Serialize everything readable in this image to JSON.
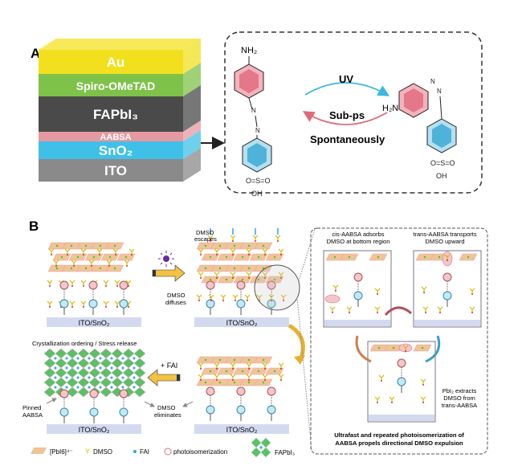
{
  "panel_a": {
    "label": "A",
    "layers": [
      "Au",
      "Spiro-OMeTAD",
      "FAPbI₃",
      "AABSA",
      "SnO₂",
      "ITO"
    ],
    "layer_colors": [
      "#f2e01e",
      "#7fc24a",
      "#4a4a4a",
      "#e49aa0",
      "#3fc0e8",
      "#8a8a8a"
    ],
    "cis_molecule": {
      "top_group": "NH₂",
      "bottom_group": "OH",
      "sulfonyl": "O=S=O"
    },
    "trans_molecule": {
      "left_group": "H₂N",
      "bottom_group": "OH",
      "sulfonyl": "O=S=O"
    },
    "forward_label": "UV",
    "reverse_label": "Sub-ps",
    "reverse_label_2": "Spontaneously"
  },
  "panel_b": {
    "label": "B",
    "substrate": "ITO/SnO₂",
    "dmso_escapes": "DMSO\nescapes",
    "dmso_escapes_1": "DMSO",
    "dmso_escapes_2": "escapes",
    "dmso_diffuses_1": "DMSO",
    "dmso_diffuses_2": "diffuses",
    "crystallization": "Crystallization ordering / Stress release",
    "add_fai": "+ FAI",
    "pinned_1": "Pinned",
    "pinned_2": "AABSA",
    "eliminates_1": "DMSO",
    "eliminates_2": "eliminates",
    "legend": {
      "pbi6": "[PbI6]⁴⁻",
      "dmso": "DMSO",
      "fai": "FAI",
      "photo": "photoisomerization",
      "fapbi3": "FAPbI₃"
    },
    "mechanism": {
      "step1_1": "cis-AABSA adsorbs",
      "step1_2": "DMSO  at bottom region",
      "step2_1": "trans-AABSA transports",
      "step2_2": "DMSO upward",
      "step3_1": "PbI₂ extracts",
      "step3_2": "DMSO from",
      "step3_3": "trans-AABSA",
      "summary_1": "Ultrafast and repeated photoisomerization of",
      "summary_2": "AABSA propels directional DMSO expulsion"
    }
  }
}
